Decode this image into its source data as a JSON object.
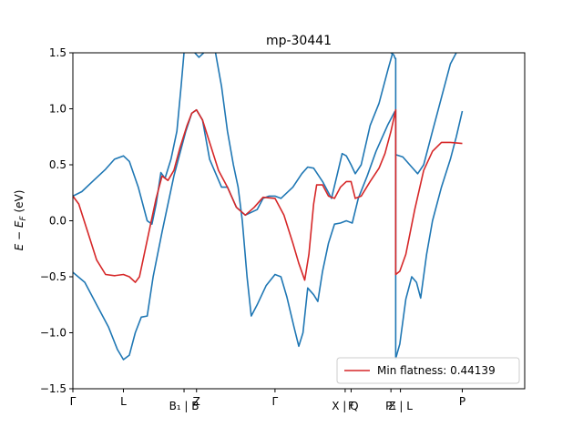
{
  "chart_data": {
    "type": "line",
    "title": "mp-30441",
    "ylabel": "E − E_F (eV)",
    "ylabel_parts": {
      "base": "E − E",
      "sub": "F",
      "unit": " (eV)"
    },
    "ylim": [
      -1.5,
      1.5
    ],
    "xlim": [
      0,
      7.6
    ],
    "yticks": [
      -1.5,
      -1.0,
      -0.5,
      0.0,
      0.5,
      1.0,
      1.5
    ],
    "ytick_labels": [
      "−1.5",
      "−1.0",
      "−0.5",
      "0.0",
      "0.5",
      "1.0",
      "1.5"
    ],
    "grid": false,
    "legend_position": "lower-right",
    "colors": {
      "bands": "#1f77b4",
      "flat_band": "#d62728"
    },
    "kpoints": [
      {
        "label": "Γ",
        "x": 0.0
      },
      {
        "label": "L",
        "x": 0.85
      },
      {
        "label": "B₁ | B",
        "x": 1.87
      },
      {
        "label": "Z",
        "x": 2.08
      },
      {
        "label": "Γ",
        "x": 3.4
      },
      {
        "label": "X | Q",
        "x": 4.58
      },
      {
        "label": "F",
        "x": 4.68
      },
      {
        "label": "P₁",
        "x": 5.35
      },
      {
        "label": "Z | L",
        "x": 5.51
      },
      {
        "label": "P",
        "x": 6.55
      }
    ],
    "series": [
      {
        "name": "",
        "color": "#1f77b4",
        "segments": [
          [
            [
              0.0,
              0.22
            ],
            [
              0.15,
              0.26
            ],
            [
              0.35,
              0.36
            ],
            [
              0.55,
              0.46
            ],
            [
              0.7,
              0.55
            ],
            [
              0.85,
              0.58
            ],
            [
              0.95,
              0.53
            ],
            [
              1.1,
              0.3
            ],
            [
              1.25,
              0.0
            ],
            [
              1.33,
              -0.03
            ],
            [
              1.4,
              0.15
            ],
            [
              1.48,
              0.43
            ],
            [
              1.55,
              0.38
            ],
            [
              1.65,
              0.55
            ],
            [
              1.75,
              0.8
            ],
            [
              1.82,
              1.2
            ],
            [
              1.87,
              1.5
            ]
          ]
        ]
      },
      {
        "name": "",
        "color": "#1f77b4",
        "segments": [
          [
            [
              2.05,
              1.5
            ],
            [
              2.12,
              1.46
            ],
            [
              2.2,
              1.5
            ]
          ]
        ]
      },
      {
        "name": "",
        "color": "#1f77b4",
        "segments": [
          [
            [
              0.0,
              -0.46
            ],
            [
              0.2,
              -0.55
            ],
            [
              0.4,
              -0.75
            ],
            [
              0.6,
              -0.95
            ],
            [
              0.75,
              -1.15
            ],
            [
              0.85,
              -1.24
            ],
            [
              0.95,
              -1.2
            ],
            [
              1.05,
              -1.0
            ],
            [
              1.15,
              -0.86
            ],
            [
              1.25,
              -0.85
            ],
            [
              1.35,
              -0.5
            ],
            [
              1.5,
              -0.1
            ],
            [
              1.7,
              0.4
            ],
            [
              1.9,
              0.8
            ],
            [
              2.0,
              0.96
            ],
            [
              2.08,
              0.99
            ],
            [
              2.18,
              0.9
            ],
            [
              2.3,
              0.55
            ],
            [
              2.5,
              0.3
            ],
            [
              2.6,
              0.3
            ],
            [
              2.75,
              0.12
            ],
            [
              2.9,
              0.05
            ],
            [
              3.1,
              0.1
            ],
            [
              3.2,
              0.2
            ],
            [
              3.3,
              0.22
            ],
            [
              3.4,
              0.22
            ],
            [
              3.5,
              0.2
            ],
            [
              3.7,
              0.3
            ],
            [
              3.85,
              0.42
            ],
            [
              3.95,
              0.48
            ],
            [
              4.05,
              0.47
            ],
            [
              4.2,
              0.35
            ],
            [
              4.35,
              0.2
            ],
            [
              4.45,
              0.42
            ],
            [
              4.53,
              0.6
            ],
            [
              4.6,
              0.58
            ],
            [
              4.68,
              0.5
            ],
            [
              4.75,
              0.42
            ],
            [
              4.85,
              0.5
            ],
            [
              5.0,
              0.85
            ],
            [
              5.15,
              1.05
            ],
            [
              5.3,
              1.35
            ],
            [
              5.38,
              1.5
            ]
          ]
        ]
      },
      {
        "name": "",
        "color": "#1f77b4",
        "segments": [
          [
            [
              2.4,
              1.5
            ],
            [
              2.5,
              1.2
            ],
            [
              2.6,
              0.8
            ],
            [
              2.7,
              0.5
            ],
            [
              2.78,
              0.3
            ],
            [
              2.85,
              0.0
            ],
            [
              2.93,
              -0.5
            ],
            [
              3.0,
              -0.85
            ],
            [
              3.1,
              -0.75
            ],
            [
              3.25,
              -0.58
            ],
            [
              3.4,
              -0.48
            ],
            [
              3.5,
              -0.5
            ],
            [
              3.6,
              -0.68
            ],
            [
              3.72,
              -0.95
            ],
            [
              3.8,
              -1.12
            ],
            [
              3.87,
              -1.0
            ],
            [
              3.95,
              -0.6
            ],
            [
              4.05,
              -0.66
            ],
            [
              4.12,
              -0.72
            ],
            [
              4.2,
              -0.45
            ],
            [
              4.3,
              -0.2
            ],
            [
              4.4,
              -0.03
            ],
            [
              4.5,
              -0.02
            ],
            [
              4.6,
              0.0
            ],
            [
              4.7,
              -0.02
            ],
            [
              4.8,
              0.2
            ],
            [
              4.95,
              0.4
            ],
            [
              5.1,
              0.62
            ],
            [
              5.3,
              0.86
            ],
            [
              5.42,
              0.98
            ]
          ]
        ]
      },
      {
        "name": "",
        "color": "#1f77b4",
        "segments": [
          [
            [
              5.35,
              1.5
            ],
            [
              5.4,
              1.48
            ],
            [
              5.42,
              1.45
            ],
            [
              5.43,
              1.45
            ],
            [
              5.43,
              0.0
            ],
            [
              5.43,
              -1.24
            ]
          ]
        ]
      },
      {
        "name": "",
        "color": "#1f77b4",
        "segments": [
          [
            [
              5.43,
              -1.23
            ],
            [
              5.5,
              -1.1
            ],
            [
              5.6,
              -0.7
            ],
            [
              5.7,
              -0.5
            ],
            [
              5.78,
              -0.55
            ],
            [
              5.85,
              -0.69
            ],
            [
              5.95,
              -0.3
            ],
            [
              6.05,
              0.0
            ],
            [
              6.2,
              0.3
            ],
            [
              6.35,
              0.55
            ],
            [
              6.45,
              0.75
            ],
            [
              6.55,
              0.98
            ]
          ]
        ]
      },
      {
        "name": "",
        "color": "#1f77b4",
        "segments": [
          [
            [
              5.43,
              0.59
            ],
            [
              5.55,
              0.57
            ],
            [
              5.7,
              0.48
            ],
            [
              5.8,
              0.42
            ],
            [
              5.9,
              0.5
            ],
            [
              6.05,
              0.8
            ],
            [
              6.2,
              1.1
            ],
            [
              6.35,
              1.4
            ],
            [
              6.45,
              1.5
            ]
          ]
        ]
      },
      {
        "name": "Min flatness: 0.44139",
        "color": "#d62728",
        "segments": [
          [
            [
              0.0,
              0.22
            ],
            [
              0.1,
              0.15
            ],
            [
              0.25,
              -0.1
            ],
            [
              0.4,
              -0.35
            ],
            [
              0.55,
              -0.48
            ],
            [
              0.7,
              -0.49
            ],
            [
              0.85,
              -0.48
            ],
            [
              0.95,
              -0.5
            ],
            [
              1.05,
              -0.55
            ],
            [
              1.12,
              -0.5
            ],
            [
              1.2,
              -0.3
            ],
            [
              1.3,
              -0.05
            ],
            [
              1.4,
              0.2
            ],
            [
              1.5,
              0.4
            ],
            [
              1.6,
              0.36
            ],
            [
              1.7,
              0.45
            ],
            [
              1.8,
              0.65
            ],
            [
              1.92,
              0.85
            ],
            [
              2.0,
              0.96
            ],
            [
              2.08,
              0.99
            ],
            [
              2.18,
              0.9
            ],
            [
              2.3,
              0.7
            ],
            [
              2.45,
              0.45
            ],
            [
              2.6,
              0.3
            ],
            [
              2.75,
              0.12
            ],
            [
              2.9,
              0.05
            ],
            [
              3.05,
              0.12
            ],
            [
              3.2,
              0.21
            ],
            [
              3.4,
              0.2
            ],
            [
              3.55,
              0.05
            ],
            [
              3.7,
              -0.2
            ],
            [
              3.8,
              -0.38
            ],
            [
              3.9,
              -0.53
            ],
            [
              3.97,
              -0.3
            ],
            [
              4.05,
              0.15
            ],
            [
              4.1,
              0.32
            ],
            [
              4.2,
              0.32
            ],
            [
              4.3,
              0.22
            ],
            [
              4.4,
              0.2
            ],
            [
              4.5,
              0.3
            ],
            [
              4.6,
              0.35
            ],
            [
              4.68,
              0.35
            ],
            [
              4.75,
              0.2
            ],
            [
              4.85,
              0.22
            ],
            [
              5.0,
              0.35
            ],
            [
              5.15,
              0.47
            ],
            [
              5.25,
              0.6
            ],
            [
              5.35,
              0.8
            ],
            [
              5.43,
              0.99
            ],
            [
              5.43,
              0.5
            ],
            [
              5.43,
              -0.48
            ],
            [
              5.5,
              -0.45
            ],
            [
              5.6,
              -0.3
            ],
            [
              5.75,
              0.1
            ],
            [
              5.9,
              0.45
            ],
            [
              6.05,
              0.62
            ],
            [
              6.2,
              0.7
            ],
            [
              6.35,
              0.7
            ],
            [
              6.55,
              0.69
            ]
          ]
        ]
      }
    ]
  }
}
